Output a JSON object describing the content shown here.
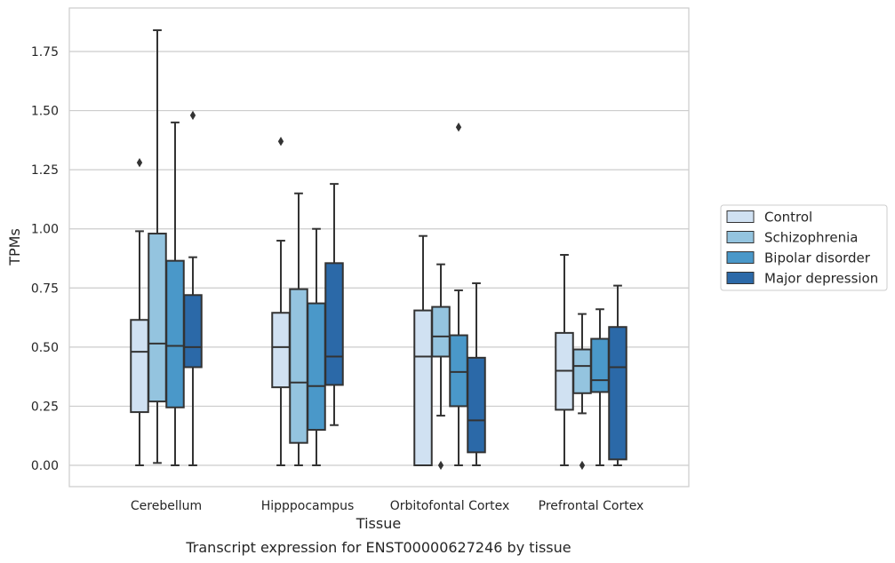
{
  "chart_data": {
    "type": "box",
    "caption": "Transcript expression for ENST00000627246 by tissue",
    "xlabel": "Tissue",
    "ylabel": "TPMs",
    "ylim": [
      -0.09,
      1.95
    ],
    "yticks": [
      "0.00",
      "0.25",
      "0.50",
      "0.75",
      "1.00",
      "1.25",
      "1.50",
      "1.75"
    ],
    "grid": true,
    "legend_position": "right",
    "categories": [
      "Cerebellum",
      "Hipppocampus",
      "Orbitofontal Cortex",
      "Prefrontal Cortex"
    ],
    "series": [
      {
        "name": "Control",
        "color": "#d0e1f2",
        "boxes": [
          {
            "whislo": 0.0,
            "q1": 0.225,
            "med": 0.48,
            "q3": 0.615,
            "whishi": 0.99,
            "fliers": [
              1.28
            ]
          },
          {
            "whislo": 0.0,
            "q1": 0.33,
            "med": 0.5,
            "q3": 0.645,
            "whishi": 0.95,
            "fliers": [
              1.37
            ]
          },
          {
            "whislo": 0.0,
            "q1": 0.0,
            "med": 0.46,
            "q3": 0.655,
            "whishi": 0.97,
            "fliers": []
          },
          {
            "whislo": 0.0,
            "q1": 0.235,
            "med": 0.4,
            "q3": 0.56,
            "whishi": 0.89,
            "fliers": []
          }
        ]
      },
      {
        "name": "Schizophrenia",
        "color": "#94c4df",
        "boxes": [
          {
            "whislo": 0.01,
            "q1": 0.27,
            "med": 0.515,
            "q3": 0.98,
            "whishi": 1.84,
            "fliers": []
          },
          {
            "whislo": 0.0,
            "q1": 0.095,
            "med": 0.35,
            "q3": 0.745,
            "whishi": 1.15,
            "fliers": []
          },
          {
            "whislo": 0.21,
            "q1": 0.46,
            "med": 0.545,
            "q3": 0.67,
            "whishi": 0.85,
            "fliers": [
              0.0
            ]
          },
          {
            "whislo": 0.22,
            "q1": 0.305,
            "med": 0.42,
            "q3": 0.49,
            "whishi": 0.64,
            "fliers": [
              0.0
            ]
          }
        ]
      },
      {
        "name": "Bipolar disorder",
        "color": "#4a98c9",
        "boxes": [
          {
            "whislo": 0.0,
            "q1": 0.245,
            "med": 0.505,
            "q3": 0.865,
            "whishi": 1.45,
            "fliers": []
          },
          {
            "whislo": 0.0,
            "q1": 0.15,
            "med": 0.335,
            "q3": 0.685,
            "whishi": 1.0,
            "fliers": []
          },
          {
            "whislo": 0.0,
            "q1": 0.25,
            "med": 0.395,
            "q3": 0.55,
            "whishi": 0.74,
            "fliers": [
              1.43
            ]
          },
          {
            "whislo": 0.0,
            "q1": 0.31,
            "med": 0.36,
            "q3": 0.535,
            "whishi": 0.66,
            "fliers": []
          }
        ]
      },
      {
        "name": "Major depression",
        "color": "#2b69a8",
        "boxes": [
          {
            "whislo": 0.0,
            "q1": 0.415,
            "med": 0.5,
            "q3": 0.72,
            "whishi": 0.88,
            "fliers": [
              1.48
            ]
          },
          {
            "whislo": 0.17,
            "q1": 0.34,
            "med": 0.46,
            "q3": 0.855,
            "whishi": 1.19,
            "fliers": []
          },
          {
            "whislo": 0.0,
            "q1": 0.055,
            "med": 0.19,
            "q3": 0.455,
            "whishi": 0.77,
            "fliers": []
          },
          {
            "whislo": 0.0,
            "q1": 0.025,
            "med": 0.415,
            "q3": 0.585,
            "whishi": 0.76,
            "fliers": []
          }
        ]
      }
    ]
  }
}
